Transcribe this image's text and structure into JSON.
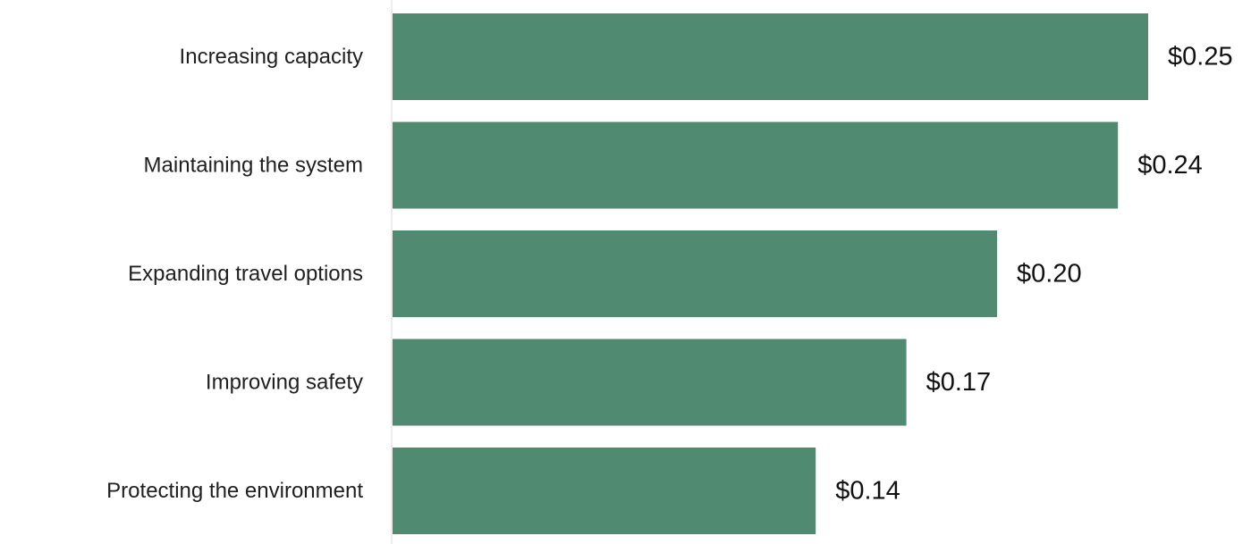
{
  "chart_data": {
    "type": "bar",
    "orientation": "horizontal",
    "categories": [
      "Increasing capacity",
      "Maintaining the system",
      "Expanding travel options",
      "Improving safety",
      "Protecting the environment"
    ],
    "values": [
      0.25,
      0.24,
      0.2,
      0.17,
      0.14
    ],
    "value_labels": [
      "$0.25",
      "$0.24",
      "$0.20",
      "$0.17",
      "$0.14"
    ],
    "title": "",
    "xlabel": "",
    "ylabel": "",
    "xlim": [
      0,
      0.25
    ],
    "grid": false,
    "legend": "none",
    "bar_color": "#4f8a71"
  }
}
